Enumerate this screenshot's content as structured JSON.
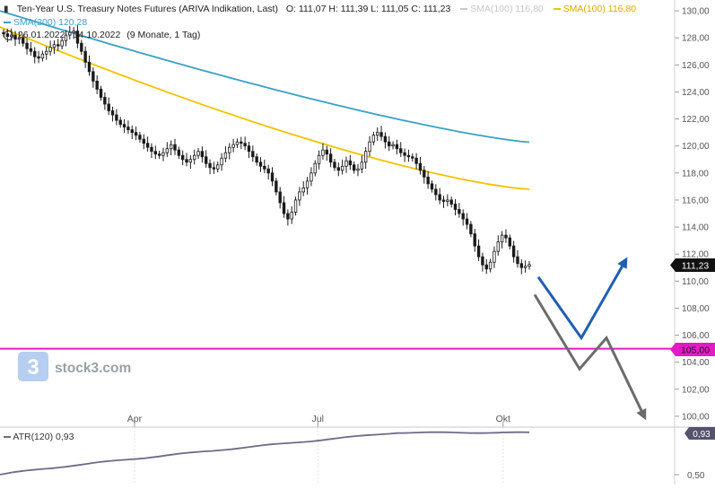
{
  "header": {
    "instrument": "Ten-Year U.S. Treasury Notes Futures (ARIVA Indikation, Last)",
    "ohlc": "O: 111,07  H: 111,39  L: 111,05  C: 111,23",
    "sma200_label": "SMA(200)",
    "sma200_value": "120,28",
    "sma100_label_grey": "SMA(100)",
    "sma100_value_grey": "116,80",
    "sma100_label": "SMA(100)",
    "sma100_value": "116,80",
    "date_range": "26.01.2022 - 14.10.2022",
    "period": "(9 Monate, 1 Tag)"
  },
  "atr": {
    "label": "ATR(120)",
    "value": "0,93",
    "badge": "0,93",
    "tick": "0,50"
  },
  "badges": {
    "last_price": "111,23",
    "support": "105,00"
  },
  "watermark": {
    "text": "stock3.com"
  },
  "colors": {
    "candle": "#1a1a1a",
    "sma200": "#3aa0c6",
    "sma100": "#f2c200",
    "support_line": "#e619c8",
    "scenario_up": "#1f5fb3",
    "scenario_down": "#6b6b6b",
    "atr_line": "#6e6a8a",
    "axis_text": "#555555"
  },
  "chart_data": {
    "type": "candlestick",
    "y_ticks": [
      "130,00",
      "128,00",
      "126,00",
      "124,00",
      "122,00",
      "120,00",
      "118,00",
      "116,00",
      "114,00",
      "112,00",
      "110,00",
      "108,00",
      "106,00",
      "104,00",
      "102,00",
      "100,00"
    ],
    "ylim": [
      99.2,
      130.8
    ],
    "x_ticks": [
      "Apr",
      "Jul",
      "Okt"
    ],
    "x_range": [
      "2022-01-26",
      "2022-10-14"
    ],
    "closes": [
      128.3,
      128.1,
      128.2,
      127.9,
      128.0,
      127.6,
      127.2,
      127.0,
      126.6,
      126.5,
      126.8,
      127.0,
      127.3,
      127.5,
      127.4,
      127.8,
      128.2,
      128.4,
      128.5,
      127.6,
      127.0,
      126.2,
      125.5,
      124.8,
      124.2,
      123.6,
      123.1,
      122.6,
      122.3,
      121.9,
      121.6,
      121.4,
      121.2,
      121.0,
      120.8,
      120.5,
      120.2,
      119.9,
      119.6,
      119.4,
      119.3,
      119.5,
      119.8,
      120.1,
      119.7,
      119.3,
      119.0,
      118.8,
      119.0,
      119.3,
      119.6,
      119.2,
      118.7,
      118.4,
      118.3,
      118.6,
      119.1,
      119.5,
      119.9,
      120.1,
      120.3,
      120.2,
      120.0,
      119.6,
      119.2,
      118.8,
      118.5,
      118.3,
      118.0,
      117.4,
      116.6,
      115.8,
      115.0,
      114.6,
      115.1,
      116.0,
      116.6,
      116.9,
      117.4,
      118.0,
      118.7,
      119.3,
      119.7,
      119.4,
      118.8,
      118.4,
      118.2,
      118.5,
      118.9,
      118.6,
      118.2,
      118.3,
      118.8,
      119.6,
      120.3,
      120.8,
      121.0,
      120.7,
      120.3,
      120.0,
      120.1,
      119.8,
      119.5,
      119.3,
      119.2,
      119.1,
      118.7,
      118.2,
      117.7,
      117.2,
      116.8,
      116.4,
      116.0,
      115.9,
      116.0,
      115.7,
      115.3,
      115.0,
      114.6,
      114.2,
      113.5,
      112.6,
      111.8,
      111.2,
      110.9,
      111.4,
      112.2,
      112.9,
      113.4,
      113.2,
      112.6,
      111.8,
      111.3,
      111.0,
      111.1,
      111.23
    ],
    "sma200": {
      "name": "SMA(200)",
      "start_value": 130.0,
      "end_value": 120.28
    },
    "sma100": {
      "name": "SMA(100)",
      "start_value": 128.8,
      "end_value": 116.8
    },
    "support_level": 105.0,
    "scenarios": {
      "up": {
        "points": [
          110.3,
          105.8,
          111.5
        ]
      },
      "down": {
        "points": [
          109.0,
          103.5,
          105.8,
          100.0
        ]
      }
    },
    "atr_series": {
      "name": "ATR(120)",
      "start_value": 0.5,
      "end_value": 0.93,
      "tick": 0.5
    }
  }
}
